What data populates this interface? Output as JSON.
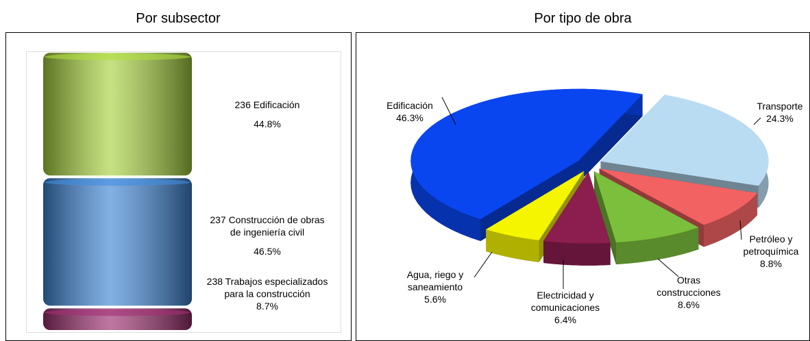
{
  "chart_data": [
    {
      "type": "bar",
      "stacked": true,
      "title": "Por subsector",
      "ylim": [
        0,
        100
      ],
      "series": [
        {
          "name": "238 Trabajos especializados para la construcción",
          "color": "#9b2d6e",
          "values": [
            8.7
          ],
          "value_labels": [
            "8.7%"
          ]
        },
        {
          "name": "237 Construcción de obras de ingeniería civil",
          "color": "#3f86d6",
          "values": [
            46.5
          ],
          "value_labels": [
            "46.5%"
          ]
        },
        {
          "name": "236 Edificación",
          "color": "#a8d23e",
          "values": [
            44.8
          ],
          "value_labels": [
            "44.8%"
          ]
        }
      ]
    },
    {
      "type": "pie",
      "title": "Por tipo de obra",
      "categories": [
        "Transporte",
        "Petróleo y petroquímica",
        "Otras construcciones",
        "Electricidad y comunicaciones",
        "Agua, riego y saneamiento",
        "Edificación"
      ],
      "values": [
        24.3,
        8.8,
        8.6,
        6.4,
        5.6,
        46.3
      ],
      "value_labels": [
        "24.3%",
        "8.8%",
        "8.6%",
        "6.4%",
        "5.6%",
        "46.3%"
      ],
      "colors": [
        "#b9dcf2",
        "#f26262",
        "#7cbf3c",
        "#8c1d4f",
        "#f5f500",
        "#0a46f0"
      ]
    }
  ]
}
